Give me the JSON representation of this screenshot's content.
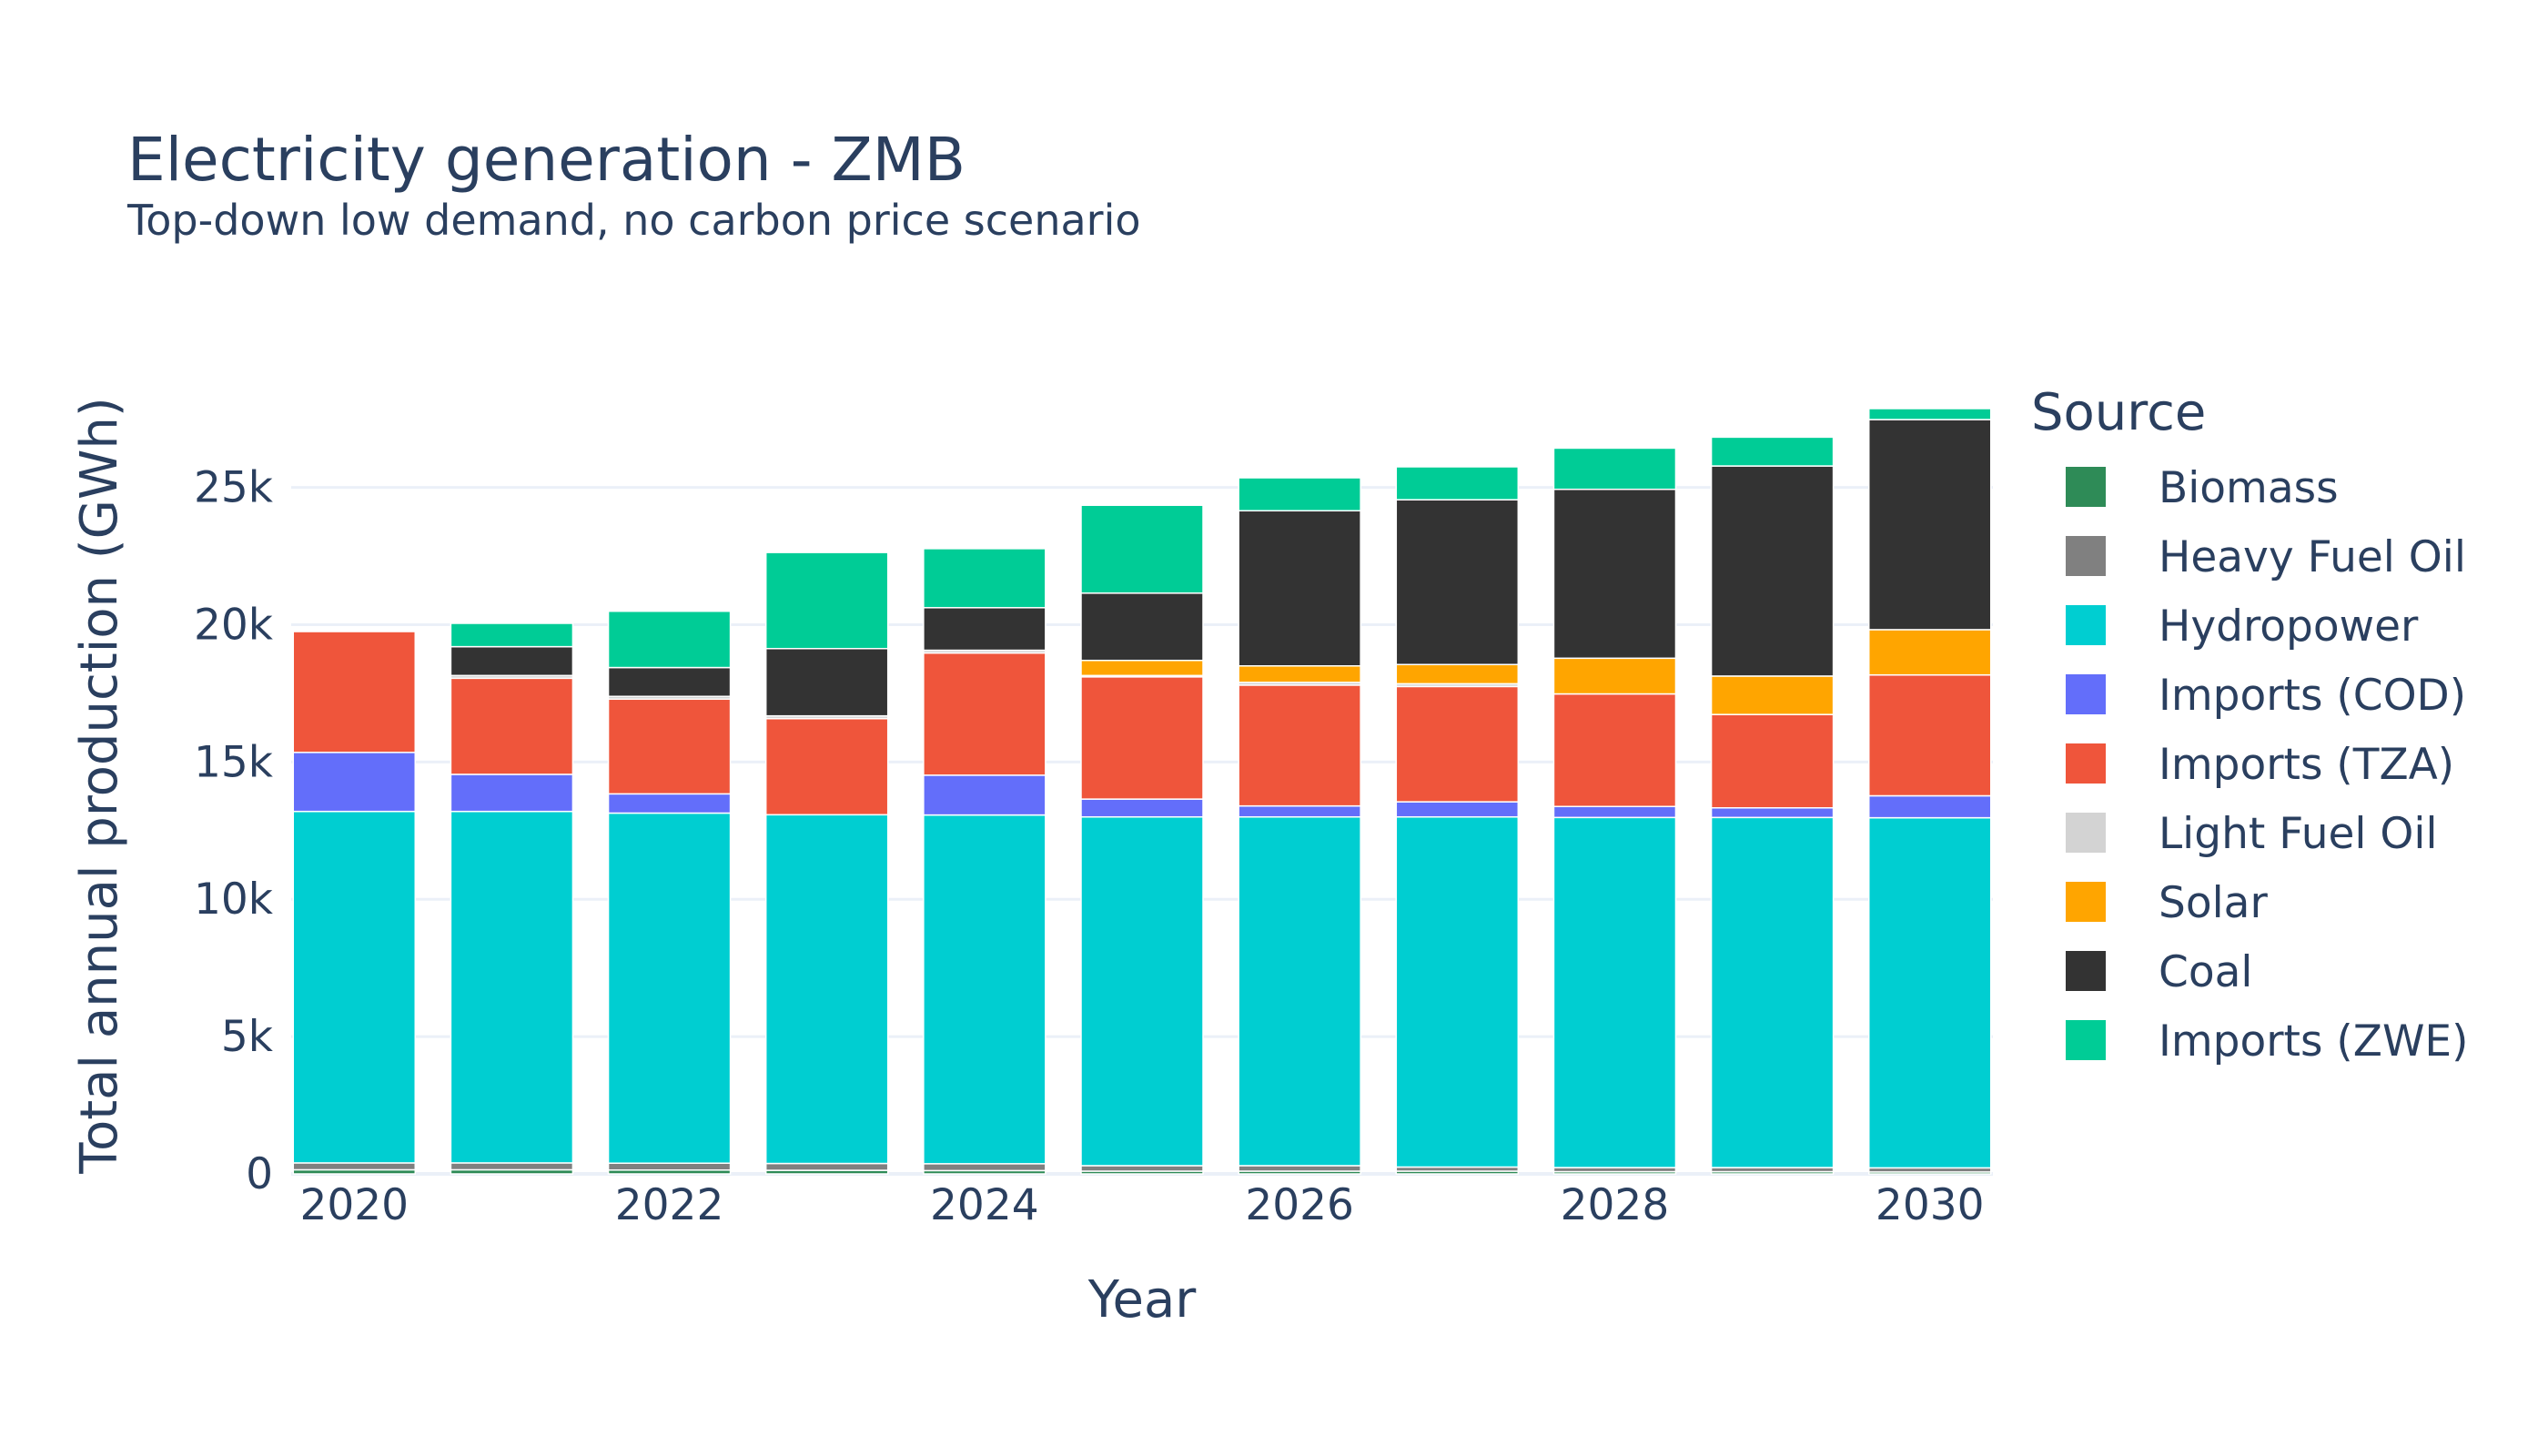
{
  "chart_data": {
    "type": "bar",
    "stacked": true,
    "title": "Electricity generation - ZMB",
    "subtitle": "Top-down low demand, no carbon price scenario",
    "xlabel": "Year",
    "ylabel": "Total annual production (GWh)",
    "x": [
      2020,
      2021,
      2022,
      2023,
      2024,
      2025,
      2026,
      2027,
      2028,
      2029,
      2030
    ],
    "x_ticks": [
      "2020",
      "2022",
      "2024",
      "2026",
      "2028",
      "2030"
    ],
    "y_ticks": [
      "0",
      "5k",
      "10k",
      "15k",
      "20k",
      "25k"
    ],
    "y_tick_values": [
      0,
      5000,
      10000,
      15000,
      20000,
      25000
    ],
    "ylim": [
      0,
      28500
    ],
    "grid": true,
    "legend_title": "Source",
    "legend_position": "right",
    "series": [
      {
        "name": "Biomass",
        "color": "#2e8b57",
        "values": [
          150,
          150,
          140,
          130,
          120,
          100,
          100,
          100,
          80,
          80,
          70
        ]
      },
      {
        "name": "Heavy Fuel Oil",
        "color": "#808080",
        "values": [
          250,
          250,
          250,
          250,
          250,
          200,
          200,
          150,
          150,
          150,
          150
        ]
      },
      {
        "name": "Hydropower",
        "color": "#00ced1",
        "values": [
          12800,
          12800,
          12750,
          12700,
          12700,
          12700,
          12700,
          12750,
          12750,
          12750,
          12750
        ]
      },
      {
        "name": "Imports (COD)",
        "color": "#636efa",
        "values": [
          2150,
          1350,
          700,
          0,
          1450,
          650,
          400,
          550,
          400,
          350,
          800
        ]
      },
      {
        "name": "Imports (TZA)",
        "color": "#ef553b",
        "values": [
          4400,
          3500,
          3450,
          3500,
          4450,
          4450,
          4400,
          4200,
          4100,
          3400,
          4400
        ]
      },
      {
        "name": "Light Fuel Oil",
        "color": "#d3d3d3",
        "values": [
          0,
          100,
          100,
          100,
          100,
          50,
          100,
          100,
          0,
          0,
          0
        ]
      },
      {
        "name": "Solar",
        "color": "#ffa500",
        "values": [
          0,
          0,
          0,
          0,
          0,
          550,
          600,
          700,
          1300,
          1400,
          1650
        ]
      },
      {
        "name": "Coal",
        "color": "#333333",
        "values": [
          0,
          1050,
          1050,
          2450,
          1550,
          2450,
          5650,
          6000,
          6150,
          7650,
          7650
        ]
      },
      {
        "name": "Imports (ZWE)",
        "color": "#00cc96",
        "values": [
          0,
          850,
          2050,
          3500,
          2150,
          3200,
          1200,
          1200,
          1500,
          1050,
          400
        ]
      }
    ]
  }
}
